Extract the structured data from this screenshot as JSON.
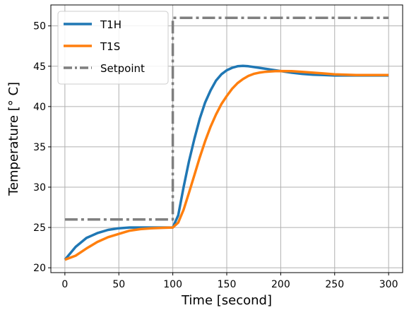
{
  "chart_data": {
    "type": "line",
    "xlabel": "Time [second]",
    "ylabel": "Temperature [° C]",
    "xlim": [
      -13,
      313
    ],
    "ylim": [
      19.4,
      52.6
    ],
    "xticks": [
      0,
      50,
      100,
      150,
      200,
      250,
      300
    ],
    "yticks": [
      20,
      25,
      30,
      35,
      40,
      45,
      50
    ],
    "grid": true,
    "legend_position": "top-left",
    "series": [
      {
        "name": "T1H",
        "color": "#1f77b4",
        "style": "solid",
        "x": [
          0,
          10,
          20,
          30,
          40,
          50,
          60,
          70,
          80,
          90,
          100,
          105,
          110,
          115,
          120,
          125,
          130,
          135,
          140,
          145,
          150,
          155,
          160,
          165,
          170,
          175,
          180,
          190,
          200,
          210,
          220,
          230,
          240,
          250,
          260,
          270,
          280,
          290,
          300
        ],
        "y": [
          21.0,
          22.6,
          23.7,
          24.3,
          24.7,
          24.9,
          25.0,
          25.0,
          25.0,
          25.0,
          25.0,
          26.5,
          30.0,
          33.2,
          36.0,
          38.5,
          40.5,
          42.0,
          43.2,
          44.0,
          44.5,
          44.8,
          45.0,
          45.05,
          45.0,
          44.9,
          44.8,
          44.6,
          44.4,
          44.2,
          44.05,
          43.95,
          43.9,
          43.85,
          43.85,
          43.85,
          43.85,
          43.85,
          43.85
        ]
      },
      {
        "name": "T1S",
        "color": "#ff7f0e",
        "style": "solid",
        "x": [
          0,
          10,
          20,
          30,
          40,
          50,
          60,
          70,
          80,
          90,
          100,
          105,
          110,
          115,
          120,
          125,
          130,
          135,
          140,
          145,
          150,
          155,
          160,
          165,
          170,
          175,
          180,
          185,
          190,
          195,
          200,
          210,
          220,
          230,
          240,
          250,
          260,
          270,
          280,
          290,
          300
        ],
        "y": [
          21.0,
          21.5,
          22.4,
          23.2,
          23.8,
          24.2,
          24.6,
          24.8,
          24.9,
          24.95,
          25.0,
          25.6,
          27.2,
          29.3,
          31.5,
          33.7,
          35.7,
          37.5,
          39.0,
          40.3,
          41.3,
          42.2,
          42.9,
          43.4,
          43.8,
          44.05,
          44.2,
          44.3,
          44.35,
          44.38,
          44.4,
          44.38,
          44.3,
          44.2,
          44.1,
          44.0,
          43.95,
          43.9,
          43.9,
          43.9,
          43.9
        ]
      },
      {
        "name": "Setpoint",
        "color": "#7f7f7f",
        "style": "dashdot",
        "x": [
          0,
          100,
          100,
          300
        ],
        "y": [
          26,
          26,
          51,
          51
        ]
      }
    ]
  }
}
